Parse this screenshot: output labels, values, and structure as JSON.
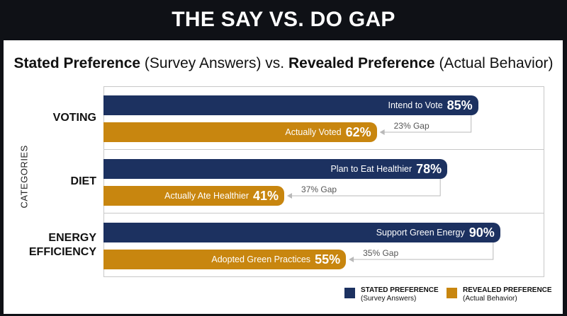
{
  "header": {
    "title": "THE SAY VS. DO GAP"
  },
  "subtitle": {
    "part1_bold": "Stated Preference",
    "part2": " (Survey Answers) vs. ",
    "part3_bold": "Revealed Preference",
    "part4": " (Actual Behavior)"
  },
  "colors": {
    "stated": "#1c3160",
    "revealed": "#c8860f",
    "background": "#0f1116"
  },
  "chart_data": {
    "type": "bar",
    "orientation": "horizontal",
    "title": "THE SAY VS. DO GAP",
    "subtitle": "Stated Preference (Survey Answers) vs. Revealed Preference (Actual Behavior)",
    "ylabel": "CATEGORIES",
    "xlim": [
      0,
      100
    ],
    "grid": false,
    "legend_position": "bottom-right",
    "categories": [
      "VOTING",
      "DIET",
      "ENERGY EFFICIENCY"
    ],
    "category_lines": [
      [
        "VOTING"
      ],
      [
        "DIET"
      ],
      [
        "ENERGY",
        "EFFICIENCY"
      ]
    ],
    "series": [
      {
        "name": "STATED PREFERENCE",
        "legend_sub": "(Survey Answers)",
        "values": [
          85,
          78,
          90
        ],
        "bar_labels": [
          "Intend to Vote",
          "Plan to Eat Healthier",
          "Support Green Energy"
        ],
        "value_labels": [
          "85%",
          "78%",
          "90%"
        ]
      },
      {
        "name": "REVEALED PREFERENCE",
        "legend_sub": "(Actual Behavior)",
        "values": [
          62,
          41,
          55
        ],
        "bar_labels": [
          "Actually Voted",
          "Actually Ate Healthier",
          "Adopted Green Practices"
        ],
        "value_labels": [
          "62%",
          "41%",
          "55%"
        ]
      }
    ],
    "gaps": [
      23,
      37,
      35
    ],
    "gap_labels": [
      "23% Gap",
      "37% Gap",
      "35% Gap"
    ]
  }
}
